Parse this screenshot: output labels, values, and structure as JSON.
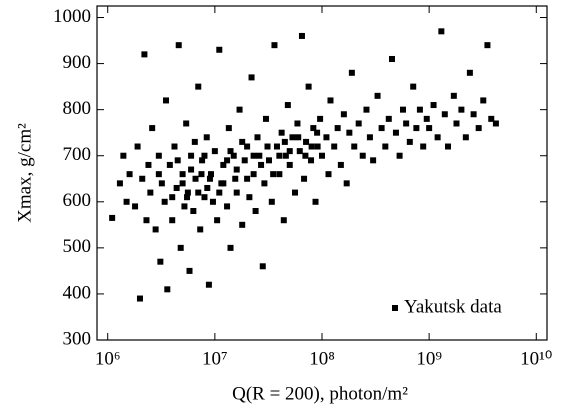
{
  "chart_data": {
    "type": "scatter",
    "xlabel": "Q(R = 200), photon/m²",
    "ylabel": "Xmax, g/cm²",
    "xscale": "log",
    "xlim": [
      794328,
      12589254117
    ],
    "ylim": [
      300,
      1025
    ],
    "xticks": [
      {
        "value": 1000000,
        "label": "10⁶"
      },
      {
        "value": 10000000,
        "label": "10⁷"
      },
      {
        "value": 100000000,
        "label": "10⁸"
      },
      {
        "value": 1000000000,
        "label": "10⁹"
      },
      {
        "value": 10000000000,
        "label": "10¹⁰"
      }
    ],
    "yticks": [
      300,
      400,
      500,
      600,
      700,
      800,
      900,
      1000
    ],
    "legend": "lower right",
    "series": [
      {
        "name": "Yakutsk data",
        "color": "#000000",
        "x": [
          1100000.0,
          1300000.0,
          1400000.0,
          1500000.0,
          1600000.0,
          1800000.0,
          1900000.0,
          2000000.0,
          2100000.0,
          2200000.0,
          2300000.0,
          2400000.0,
          2500000.0,
          2600000.0,
          2800000.0,
          3000000.0,
          3100000.0,
          3200000.0,
          3400000.0,
          3500000.0,
          3600000.0,
          3800000.0,
          4000000.0,
          4200000.0,
          4400000.0,
          4600000.0,
          4800000.0,
          5000000.0,
          5200000.0,
          5400000.0,
          5600000.0,
          5800000.0,
          6000000.0,
          6300000.0,
          6600000.0,
          7000000.0,
          7300000.0,
          7600000.0,
          8000000.0,
          8400000.0,
          8800000.0,
          9200000.0,
          9600000.0,
          10000000.0,
          10500000.0,
          11000000.0,
          11500000.0,
          12000000.0,
          13000000.0,
          13500000.0,
          14000000.0,
          15000000.0,
          15500000.0,
          16000000.0,
          17000000.0,
          18000000.0,
          19000000.0,
          20000000.0,
          21000000.0,
          22000000.0,
          23000000.0,
          24000000.0,
          25000000.0,
          26000000.0,
          28000000.0,
          29000000.0,
          30000000.0,
          32000000.0,
          34000000.0,
          36000000.0,
          38000000.0,
          40000000.0,
          42000000.0,
          44000000.0,
          46000000.0,
          48000000.0,
          50000000.0,
          53000000.0,
          56000000.0,
          59000000.0,
          62000000.0,
          65000000.0,
          68000000.0,
          71000000.0,
          75000000.0,
          79000000.0,
          83000000.0,
          87000000.0,
          91000000.0,
          96000000.0,
          100000000.0,
          110000000.0,
          115000000.0,
          120000000.0,
          130000000.0,
          140000000.0,
          150000000.0,
          160000000.0,
          170000000.0,
          180000000.0,
          190000000.0,
          200000000.0,
          220000000.0,
          240000000.0,
          260000000.0,
          280000000.0,
          300000000.0,
          330000000.0,
          360000000.0,
          390000000.0,
          420000000.0,
          450000000.0,
          490000000.0,
          530000000.0,
          570000000.0,
          610000000.0,
          660000000.0,
          710000000.0,
          760000000.0,
          820000000.0,
          880000000.0,
          950000000.0,
          1000000000.0,
          1100000000.0,
          1200000000.0,
          1300000000.0,
          1400000000.0,
          1500000000.0,
          1700000000.0,
          1800000000.0,
          2000000000.0,
          2200000000.0,
          2400000000.0,
          2600000000.0,
          2900000000.0,
          3200000000.0,
          3500000000.0,
          3800000000.0,
          4200000000.0,
          5000000.0,
          6000000.0,
          7000000.0,
          8000000.0,
          9000000.0,
          12000000.0,
          14000000.0,
          16000000.0,
          18000000.0,
          20000000.0,
          23000000.0,
          27000000.0,
          31000000.0,
          35000000.0,
          40000000.0,
          45000000.0,
          50000000.0,
          60000000.0,
          70000000.0,
          80000000.0,
          90000000.0,
          3000000.0,
          4000000.0,
          4500000.0,
          5500000.0,
          6500000.0,
          7500000.0,
          8500000.0,
          11000000.0,
          13000000.0
        ],
        "values": [
          565,
          640,
          700,
          600,
          660,
          590,
          720,
          390,
          650,
          920,
          560,
          680,
          620,
          760,
          540,
          700,
          470,
          640,
          600,
          820,
          410,
          680,
          560,
          720,
          630,
          940,
          500,
          660,
          590,
          770,
          620,
          450,
          700,
          580,
          650,
          850,
          540,
          690,
          610,
          740,
          420,
          660,
          600,
          710,
          560,
          930,
          640,
          680,
          590,
          760,
          500,
          700,
          650,
          620,
          800,
          550,
          690,
          720,
          610,
          870,
          660,
          580,
          740,
          700,
          460,
          640,
          780,
          690,
          600,
          940,
          720,
          660,
          750,
          560,
          700,
          810,
          680,
          740,
          620,
          770,
          710,
          960,
          650,
          730,
          850,
          690,
          760,
          600,
          720,
          780,
          700,
          740,
          660,
          820,
          720,
          760,
          680,
          790,
          640,
          750,
          880,
          720,
          770,
          700,
          800,
          740,
          690,
          830,
          760,
          720,
          780,
          910,
          750,
          700,
          800,
          770,
          730,
          850,
          760,
          800,
          720,
          780,
          760,
          810,
          740,
          970,
          790,
          720,
          830,
          770,
          800,
          740,
          880,
          790,
          760,
          820,
          940,
          780,
          770,
          640,
          670,
          620,
          700,
          650,
          640,
          710,
          670,
          730,
          650,
          700,
          680,
          720,
          660,
          700,
          730,
          710,
          740,
          700,
          720,
          750,
          660,
          610,
          690,
          610,
          730,
          660,
          630,
          620,
          690
        ]
      }
    ]
  }
}
